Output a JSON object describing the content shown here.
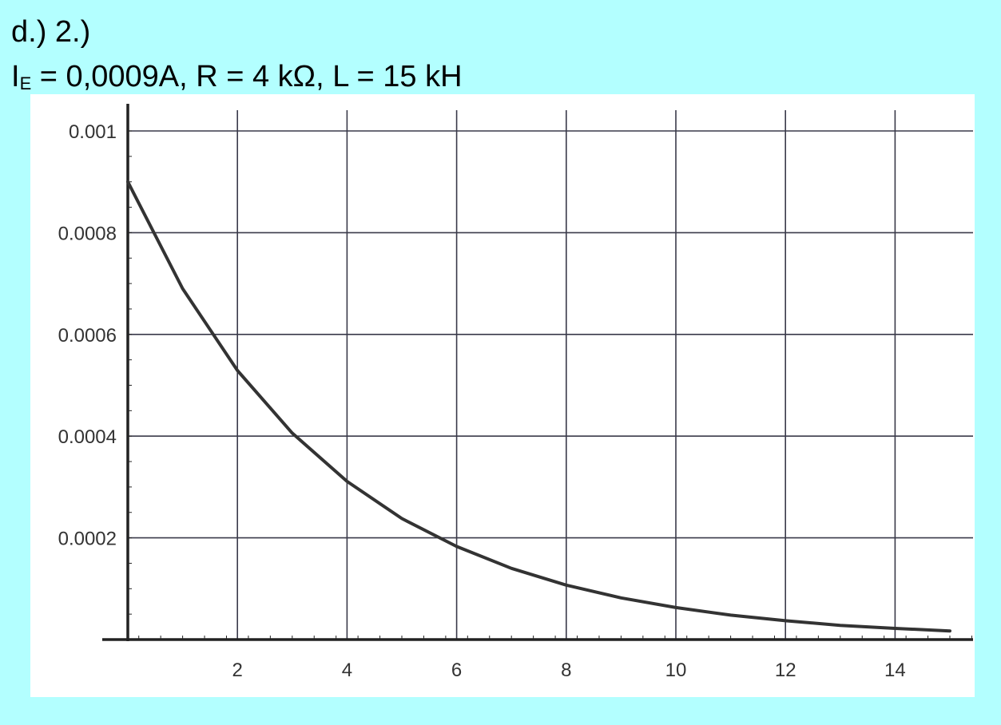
{
  "heading": "d.) 2.)",
  "params": {
    "current_symbol": "I",
    "current_sub": "E",
    "rest": " = 0,0009A, R = 4 kΩ, L = 15 kH"
  },
  "chart_data": {
    "type": "line",
    "title": "",
    "xlabel": "",
    "ylabel": "",
    "xlim": [
      0,
      15.6
    ],
    "ylim": [
      0,
      0.00105
    ],
    "grid": true,
    "x_ticks": [
      2,
      4,
      6,
      8,
      10,
      12,
      14
    ],
    "y_ticks": [
      0.0002,
      0.0004,
      0.0006,
      0.0008,
      0.001
    ],
    "x_tick_labels": [
      "2",
      "4",
      "6",
      "8",
      "10",
      "12",
      "14"
    ],
    "y_tick_labels": [
      "0.0002",
      "0.0004",
      "0.0006",
      "0.0008",
      "0.001"
    ],
    "series": [
      {
        "x": [
          0,
          1,
          2,
          3,
          4,
          5,
          6,
          7,
          8,
          9,
          10,
          11,
          12,
          13,
          14,
          15
        ],
        "y": [
          0.0009,
          0.00069,
          0.000529,
          0.000406,
          0.000311,
          0.000238,
          0.000183,
          0.00014,
          0.000107,
          8.2e-05,
          6.3e-05,
          4.8e-05,
          3.7e-05,
          2.8e-05,
          2.2e-05,
          1.7e-05
        ]
      }
    ],
    "line_color": "#333333",
    "grid_color": "#3a3a4a",
    "axis_color": "#222222"
  }
}
